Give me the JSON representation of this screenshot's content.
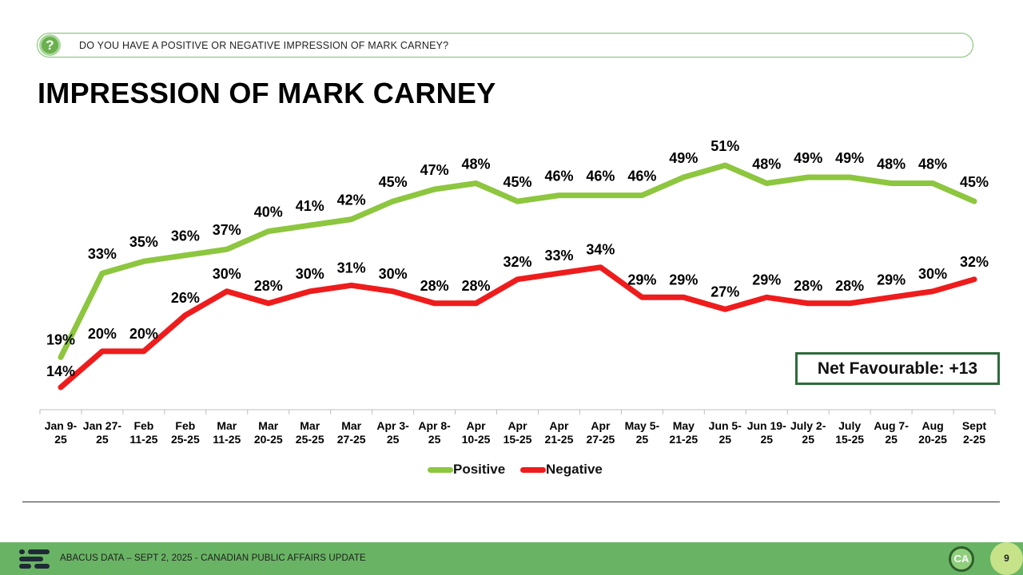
{
  "header": {
    "question_icon": "?",
    "question": "DO YOU HAVE A POSITIVE OR NEGATIVE IMPRESSION OF MARK CARNEY?",
    "title": "IMPRESSION OF MARK CARNEY"
  },
  "chart_data": {
    "type": "line",
    "title": "IMPRESSION OF MARK CARNEY",
    "xlabel": "",
    "ylabel": "",
    "ylim": [
      0,
      60
    ],
    "grid": false,
    "legend": "bottom",
    "categories": [
      [
        "Jan 9-",
        "25"
      ],
      [
        "Jan 27-",
        "25"
      ],
      [
        "Feb",
        "11-25"
      ],
      [
        "Feb",
        "25-25"
      ],
      [
        "Mar",
        "11-25"
      ],
      [
        "Mar",
        "20-25"
      ],
      [
        "Mar",
        "25-25"
      ],
      [
        "Mar",
        "27-25"
      ],
      [
        "Apr 3-",
        "25"
      ],
      [
        "Apr 8-",
        "25"
      ],
      [
        "Apr",
        "10-25"
      ],
      [
        "Apr",
        "15-25"
      ],
      [
        "Apr",
        "21-25"
      ],
      [
        "Apr",
        "27-25"
      ],
      [
        "May 5-",
        "25"
      ],
      [
        "May",
        "21-25"
      ],
      [
        "Jun 5-",
        "25"
      ],
      [
        "Jun 19-",
        "25"
      ],
      [
        "July 2-",
        "25"
      ],
      [
        "July",
        "15-25"
      ],
      [
        "Aug 7-",
        "25"
      ],
      [
        "Aug",
        "20-25"
      ],
      [
        "Sept",
        "2-25"
      ]
    ],
    "series": [
      {
        "name": "Positive",
        "color": "#8dc63f",
        "values": [
          19,
          33,
          35,
          36,
          37,
          40,
          41,
          42,
          45,
          47,
          48,
          45,
          46,
          46,
          46,
          49,
          51,
          48,
          49,
          49,
          48,
          48,
          45
        ],
        "labels": [
          "19%",
          "33%",
          "35%",
          "36%",
          "37%",
          "40%",
          "41%",
          "42%",
          "45%",
          "47%",
          "48%",
          "45%",
          "46%",
          "46%",
          "46%",
          "49%",
          "51%",
          "48%",
          "49%",
          "49%",
          "48%",
          "48%",
          "45%"
        ]
      },
      {
        "name": "Negative",
        "color": "#ee1c1c",
        "values": [
          14,
          20,
          20,
          26,
          30,
          28,
          30,
          31,
          30,
          28,
          28,
          32,
          33,
          34,
          29,
          29,
          27,
          29,
          28,
          28,
          29,
          30,
          32
        ],
        "labels": [
          "14%",
          "20%",
          "20%",
          "26%",
          "30%",
          "28%",
          "30%",
          "31%",
          "30%",
          "28%",
          "28%",
          "32%",
          "33%",
          "34%",
          "29%",
          "29%",
          "27%",
          "29%",
          "28%",
          "28%",
          "29%",
          "30%",
          "32%"
        ]
      }
    ],
    "annotations": [
      {
        "text": "Net Favourable: +13"
      }
    ]
  },
  "footer": {
    "source_text": "ABACUS DATA – SEPT 2, 2025 - CANADIAN PUBLIC AFFAIRS UPDATE",
    "badge": "CA",
    "page_number": "9"
  }
}
